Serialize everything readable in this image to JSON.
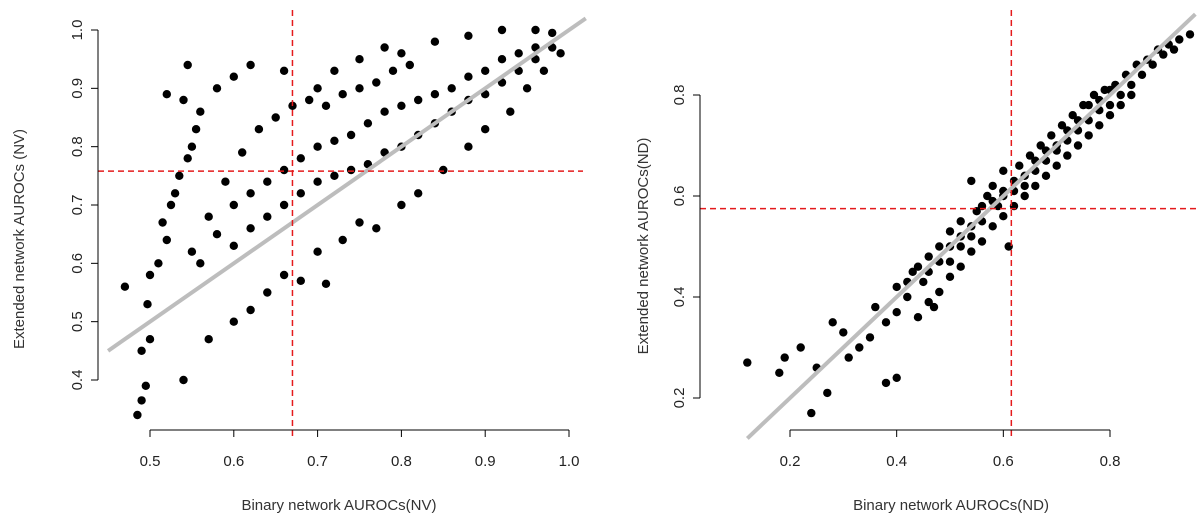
{
  "chart_data": [
    {
      "type": "scatter",
      "xlabel": "Binary network AUROCs(NV)",
      "ylabel": "Extended network AUROCs (NV)",
      "xlim": [
        0.45,
        1.02
      ],
      "ylim": [
        0.33,
        1.02
      ],
      "xticks": [
        "0.5",
        "0.6",
        "0.7",
        "0.8",
        "0.9",
        "1.0"
      ],
      "yticks": [
        "0.4",
        "0.5",
        "0.6",
        "0.7",
        "0.8",
        "0.9",
        "1.0"
      ],
      "vline_x": 0.67,
      "hline_y": 0.758,
      "diagonal": {
        "slope": 1,
        "intercept": 0,
        "color": "#bdbdbd"
      },
      "reference_line_color": "#e41a1c",
      "point_color": "#000000",
      "grid": false,
      "points": [
        [
          0.485,
          0.34
        ],
        [
          0.49,
          0.365
        ],
        [
          0.495,
          0.39
        ],
        [
          0.49,
          0.45
        ],
        [
          0.5,
          0.47
        ],
        [
          0.497,
          0.53
        ],
        [
          0.47,
          0.56
        ],
        [
          0.5,
          0.58
        ],
        [
          0.51,
          0.6
        ],
        [
          0.52,
          0.64
        ],
        [
          0.515,
          0.67
        ],
        [
          0.525,
          0.7
        ],
        [
          0.53,
          0.72
        ],
        [
          0.535,
          0.75
        ],
        [
          0.545,
          0.78
        ],
        [
          0.55,
          0.8
        ],
        [
          0.555,
          0.83
        ],
        [
          0.56,
          0.86
        ],
        [
          0.545,
          0.94
        ],
        [
          0.52,
          0.89
        ],
        [
          0.54,
          0.88
        ],
        [
          0.58,
          0.9
        ],
        [
          0.6,
          0.92
        ],
        [
          0.62,
          0.94
        ],
        [
          0.66,
          0.93
        ],
        [
          0.7,
          0.9
        ],
        [
          0.72,
          0.93
        ],
        [
          0.75,
          0.95
        ],
        [
          0.78,
          0.97
        ],
        [
          0.8,
          0.96
        ],
        [
          0.84,
          0.98
        ],
        [
          0.88,
          0.99
        ],
        [
          0.92,
          1.0
        ],
        [
          0.96,
          1.0
        ],
        [
          0.98,
          0.995
        ],
        [
          0.54,
          0.4
        ],
        [
          0.57,
          0.47
        ],
        [
          0.6,
          0.5
        ],
        [
          0.62,
          0.52
        ],
        [
          0.64,
          0.55
        ],
        [
          0.66,
          0.58
        ],
        [
          0.68,
          0.57
        ],
        [
          0.71,
          0.565
        ],
        [
          0.7,
          0.62
        ],
        [
          0.73,
          0.64
        ],
        [
          0.75,
          0.67
        ],
        [
          0.77,
          0.66
        ],
        [
          0.8,
          0.7
        ],
        [
          0.82,
          0.72
        ],
        [
          0.85,
          0.76
        ],
        [
          0.88,
          0.8
        ],
        [
          0.9,
          0.83
        ],
        [
          0.93,
          0.86
        ],
        [
          0.95,
          0.9
        ],
        [
          0.97,
          0.93
        ],
        [
          0.99,
          0.96
        ],
        [
          0.56,
          0.6
        ],
        [
          0.58,
          0.65
        ],
        [
          0.6,
          0.7
        ],
        [
          0.62,
          0.72
        ],
        [
          0.64,
          0.74
        ],
        [
          0.66,
          0.76
        ],
        [
          0.68,
          0.78
        ],
        [
          0.7,
          0.8
        ],
        [
          0.72,
          0.81
        ],
        [
          0.74,
          0.82
        ],
        [
          0.76,
          0.84
        ],
        [
          0.78,
          0.86
        ],
        [
          0.8,
          0.87
        ],
        [
          0.82,
          0.88
        ],
        [
          0.84,
          0.89
        ],
        [
          0.86,
          0.9
        ],
        [
          0.88,
          0.92
        ],
        [
          0.9,
          0.93
        ],
        [
          0.92,
          0.95
        ],
        [
          0.94,
          0.96
        ],
        [
          0.96,
          0.97
        ],
        [
          0.55,
          0.62
        ],
        [
          0.57,
          0.68
        ],
        [
          0.59,
          0.74
        ],
        [
          0.61,
          0.79
        ],
        [
          0.63,
          0.83
        ],
        [
          0.65,
          0.85
        ],
        [
          0.67,
          0.87
        ],
        [
          0.69,
          0.88
        ],
        [
          0.71,
          0.87
        ],
        [
          0.73,
          0.89
        ],
        [
          0.75,
          0.9
        ],
        [
          0.77,
          0.91
        ],
        [
          0.79,
          0.93
        ],
        [
          0.81,
          0.94
        ],
        [
          0.6,
          0.63
        ],
        [
          0.62,
          0.66
        ],
        [
          0.64,
          0.68
        ],
        [
          0.66,
          0.7
        ],
        [
          0.68,
          0.72
        ],
        [
          0.7,
          0.74
        ],
        [
          0.72,
          0.75
        ],
        [
          0.74,
          0.76
        ],
        [
          0.76,
          0.77
        ],
        [
          0.78,
          0.79
        ],
        [
          0.8,
          0.8
        ],
        [
          0.82,
          0.82
        ],
        [
          0.84,
          0.84
        ],
        [
          0.86,
          0.86
        ],
        [
          0.88,
          0.88
        ],
        [
          0.9,
          0.89
        ],
        [
          0.92,
          0.91
        ],
        [
          0.94,
          0.93
        ],
        [
          0.96,
          0.95
        ],
        [
          0.98,
          0.97
        ]
      ]
    },
    {
      "type": "scatter",
      "xlabel": "Binary network AUROCs(ND)",
      "ylabel": "Extended network AUROCs(ND)",
      "xlim": [
        0.1,
        0.96
      ],
      "ylim": [
        0.15,
        0.93
      ],
      "xticks": [
        "0.2",
        "0.4",
        "0.6",
        "0.8"
      ],
      "yticks": [
        "0.2",
        "0.4",
        "0.6",
        "0.8"
      ],
      "vline_x": 0.615,
      "hline_y": 0.575,
      "diagonal": {
        "slope": 1,
        "intercept": 0,
        "color": "#bdbdbd"
      },
      "reference_line_color": "#e41a1c",
      "point_color": "#000000",
      "grid": false,
      "points": [
        [
          0.12,
          0.27
        ],
        [
          0.18,
          0.25
        ],
        [
          0.19,
          0.28
        ],
        [
          0.22,
          0.3
        ],
        [
          0.24,
          0.17
        ],
        [
          0.25,
          0.26
        ],
        [
          0.27,
          0.21
        ],
        [
          0.28,
          0.35
        ],
        [
          0.3,
          0.33
        ],
        [
          0.31,
          0.28
        ],
        [
          0.33,
          0.3
        ],
        [
          0.35,
          0.32
        ],
        [
          0.36,
          0.38
        ],
        [
          0.38,
          0.35
        ],
        [
          0.38,
          0.23
        ],
        [
          0.4,
          0.24
        ],
        [
          0.4,
          0.42
        ],
        [
          0.42,
          0.4
        ],
        [
          0.43,
          0.45
        ],
        [
          0.45,
          0.43
        ],
        [
          0.46,
          0.48
        ],
        [
          0.47,
          0.38
        ],
        [
          0.48,
          0.5
        ],
        [
          0.5,
          0.47
        ],
        [
          0.5,
          0.53
        ],
        [
          0.52,
          0.5
        ],
        [
          0.52,
          0.55
        ],
        [
          0.54,
          0.52
        ],
        [
          0.54,
          0.63
        ],
        [
          0.55,
          0.57
        ],
        [
          0.56,
          0.55
        ],
        [
          0.57,
          0.6
        ],
        [
          0.58,
          0.62
        ],
        [
          0.59,
          0.58
        ],
        [
          0.6,
          0.61
        ],
        [
          0.6,
          0.65
        ],
        [
          0.61,
          0.5
        ],
        [
          0.62,
          0.63
        ],
        [
          0.63,
          0.66
        ],
        [
          0.64,
          0.62
        ],
        [
          0.65,
          0.68
        ],
        [
          0.66,
          0.65
        ],
        [
          0.67,
          0.7
        ],
        [
          0.68,
          0.67
        ],
        [
          0.69,
          0.72
        ],
        [
          0.7,
          0.69
        ],
        [
          0.71,
          0.74
        ],
        [
          0.72,
          0.71
        ],
        [
          0.73,
          0.76
        ],
        [
          0.74,
          0.73
        ],
        [
          0.75,
          0.78
        ],
        [
          0.76,
          0.75
        ],
        [
          0.77,
          0.8
        ],
        [
          0.78,
          0.77
        ],
        [
          0.79,
          0.81
        ],
        [
          0.8,
          0.78
        ],
        [
          0.81,
          0.82
        ],
        [
          0.82,
          0.8
        ],
        [
          0.83,
          0.84
        ],
        [
          0.84,
          0.82
        ],
        [
          0.85,
          0.86
        ],
        [
          0.86,
          0.84
        ],
        [
          0.87,
          0.87
        ],
        [
          0.88,
          0.86
        ],
        [
          0.89,
          0.89
        ],
        [
          0.9,
          0.88
        ],
        [
          0.91,
          0.9
        ],
        [
          0.92,
          0.89
        ],
        [
          0.93,
          0.91
        ],
        [
          0.95,
          0.92
        ],
        [
          0.44,
          0.36
        ],
        [
          0.46,
          0.39
        ],
        [
          0.48,
          0.41
        ],
        [
          0.5,
          0.44
        ],
        [
          0.52,
          0.46
        ],
        [
          0.54,
          0.49
        ],
        [
          0.56,
          0.51
        ],
        [
          0.58,
          0.54
        ],
        [
          0.6,
          0.56
        ],
        [
          0.62,
          0.58
        ],
        [
          0.64,
          0.6
        ],
        [
          0.66,
          0.62
        ],
        [
          0.68,
          0.64
        ],
        [
          0.7,
          0.66
        ],
        [
          0.72,
          0.68
        ],
        [
          0.74,
          0.7
        ],
        [
          0.76,
          0.72
        ],
        [
          0.78,
          0.74
        ],
        [
          0.8,
          0.76
        ],
        [
          0.82,
          0.78
        ],
        [
          0.84,
          0.8
        ],
        [
          0.4,
          0.37
        ],
        [
          0.42,
          0.43
        ],
        [
          0.44,
          0.46
        ],
        [
          0.46,
          0.45
        ],
        [
          0.48,
          0.47
        ],
        [
          0.5,
          0.5
        ],
        [
          0.52,
          0.52
        ],
        [
          0.54,
          0.54
        ],
        [
          0.56,
          0.58
        ],
        [
          0.58,
          0.59
        ],
        [
          0.6,
          0.6
        ],
        [
          0.62,
          0.61
        ],
        [
          0.64,
          0.64
        ],
        [
          0.66,
          0.67
        ],
        [
          0.68,
          0.69
        ],
        [
          0.7,
          0.7
        ],
        [
          0.72,
          0.73
        ],
        [
          0.74,
          0.75
        ],
        [
          0.76,
          0.78
        ],
        [
          0.78,
          0.79
        ],
        [
          0.8,
          0.81
        ]
      ]
    }
  ]
}
